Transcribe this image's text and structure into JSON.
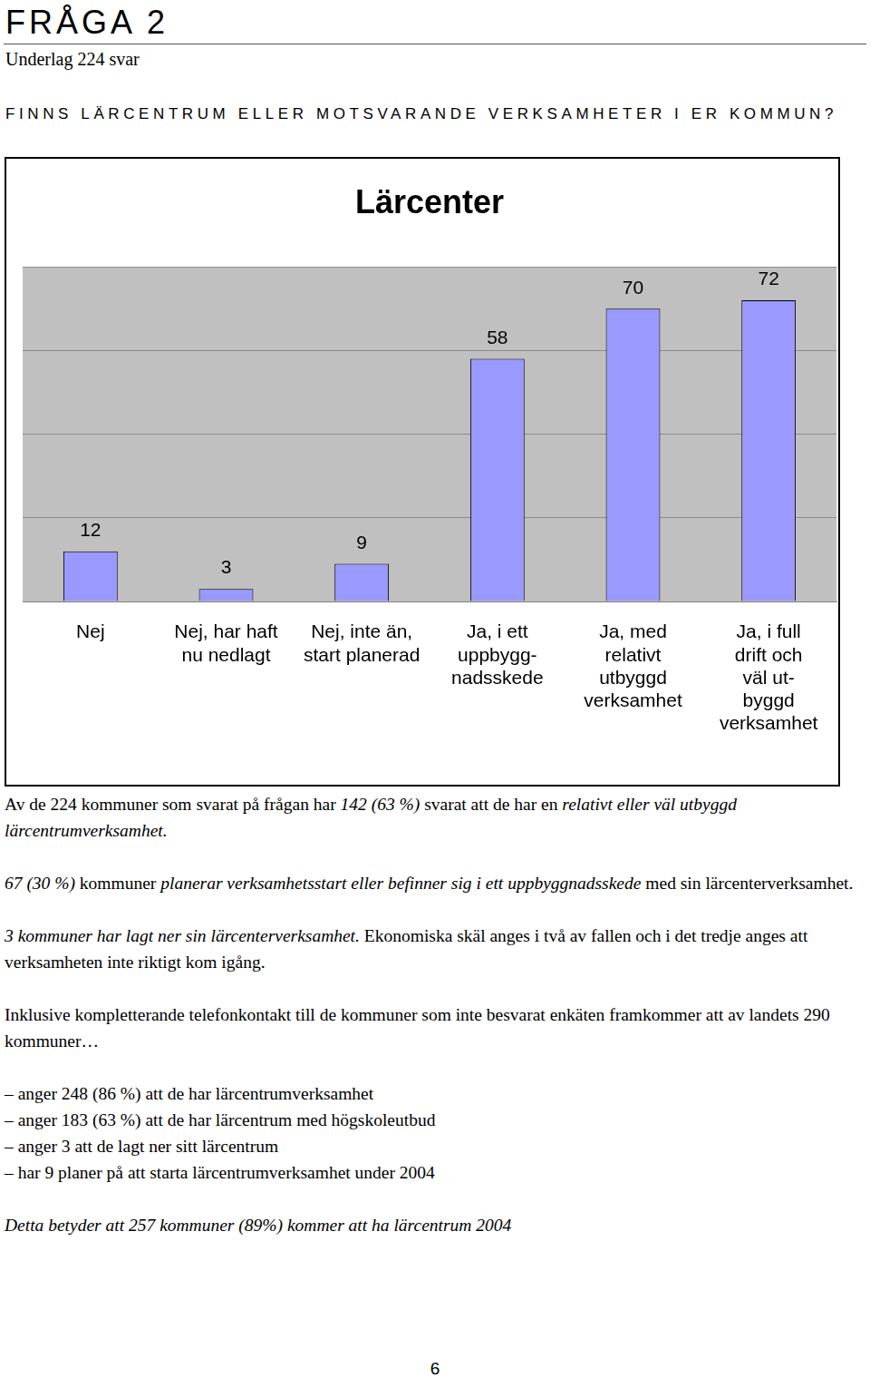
{
  "header": {
    "title": "FRÅGA 2",
    "subtitle": "Underlag 224 svar",
    "question": "FINNS LÄRCENTRUM ELLER MOTSVARANDE VERKSAMHETER I ER KOMMUN?"
  },
  "chart_data": {
    "type": "bar",
    "title": "Lärcenter",
    "categories": [
      [
        "Nej"
      ],
      [
        "Nej, har haft",
        "nu nedlagt"
      ],
      [
        "Nej, inte än,",
        "start planerad"
      ],
      [
        "Ja, i ett",
        "uppbygg-",
        "nadsskede"
      ],
      [
        "Ja, med",
        "relativt",
        "utbyggd",
        "verksamhet"
      ],
      [
        "Ja, i full",
        "drift och",
        "väl ut-",
        "byggd",
        "verksamhet"
      ]
    ],
    "values": [
      12,
      3,
      9,
      58,
      70,
      72
    ],
    "color": "#9999ff",
    "ylim": [
      0,
      80
    ],
    "yticks": [
      0,
      20,
      40,
      60,
      80
    ],
    "grid": true,
    "data_labels": true,
    "tick_labels": "x"
  },
  "paragraphs": [
    [
      {
        "text": "Av de 224 kommuner som svarat på frågan har ",
        "italic": false
      },
      {
        "text": "142 (63 %)",
        "italic": true
      },
      {
        "text": " svarat att de har en ",
        "italic": false
      },
      {
        "text": "relativt eller väl utbyggd lärcentrumverksamhet.",
        "italic": true
      }
    ],
    [
      {
        "text": "67 (30 %)",
        "italic": true
      },
      {
        "text": " kommuner ",
        "italic": false
      },
      {
        "text": "planerar verksamhetsstart eller befinner sig i ett uppbyggnadsskede",
        "italic": true
      },
      {
        "text": " med sin lärcenterverksamhet.",
        "italic": false
      }
    ],
    [
      {
        "text": "3 kommuner har lagt ner sin lärcenterverksamhet.",
        "italic": true
      },
      {
        "text": " Ekonomiska skäl anges i två av fallen och i det tredje anges att verksamheten inte riktigt kom igång.",
        "italic": false
      }
    ],
    [
      {
        "text": "Inklusive kompletterande telefonkontakt till de kommuner som inte besvarat enkäten framkommer att av landets 290 kommuner…",
        "italic": false
      }
    ]
  ],
  "list": [
    "– anger 248 (86 %) att de har lärcentrumverksamhet",
    "– anger 183 (63 %) att de har lärcentrum med högskoleutbud",
    "– anger 3 att de lagt ner sitt lärcentrum",
    "– har 9 planer på att starta lärcentrumverksamhet under 2004"
  ],
  "conclusion": [
    {
      "text": "Detta betyder att 257 kommuner (89%) kommer att ha lärcentrum 2004",
      "italic": true
    }
  ],
  "page_number": "6"
}
